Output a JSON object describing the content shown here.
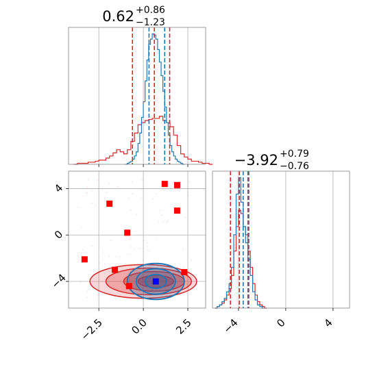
{
  "chart_data": [
    {
      "type": "histogram",
      "panel": "marginal-x",
      "title_value": "0.62",
      "title_plus": "+0.86",
      "title_minus": "−1.23",
      "xlim": [
        -4.2,
        3.5
      ],
      "grid": true,
      "series": [
        {
          "color": "#d62728",
          "bins_start": -3.9,
          "bin_width": 0.2,
          "counts": [
            0,
            1,
            1,
            1,
            2,
            2,
            3,
            4,
            4,
            6,
            8,
            11,
            14,
            12,
            10,
            14,
            22,
            30,
            38,
            40,
            42,
            43,
            44,
            44,
            46,
            42,
            40,
            36,
            28,
            18,
            10,
            7,
            5,
            3,
            3,
            2,
            1,
            1,
            0
          ]
        },
        {
          "color": "#1f77b4",
          "bins_start": -1.0,
          "bin_width": 0.1,
          "counts": [
            0,
            1,
            2,
            3,
            5,
            8,
            12,
            20,
            30,
            45,
            60,
            80,
            100,
            115,
            120,
            125,
            124,
            120,
            110,
            98,
            85,
            70,
            55,
            40,
            28,
            18,
            12,
            8,
            5,
            3,
            2,
            1,
            0
          ]
        }
      ],
      "vlines": [
        {
          "color": "#d62728",
          "values": [
            -0.61,
            0.62,
            1.48
          ]
        },
        {
          "color": "#1f77b4",
          "values": [
            0.32,
            1.2
          ]
        }
      ]
    },
    {
      "type": "histogram",
      "panel": "marginal-y",
      "title_value": "−3.92",
      "title_plus": "+0.79",
      "title_minus": "−0.76",
      "xlim": [
        -6.2,
        5.4
      ],
      "xticks": [
        "−4",
        "0",
        "4"
      ],
      "xtick_values": [
        -4,
        0,
        4
      ],
      "grid": true,
      "series": [
        {
          "color": "#d62728",
          "bins_start": -6.0,
          "bin_width": 0.2,
          "counts": [
            0,
            1,
            2,
            3,
            5,
            8,
            12,
            20,
            35,
            50,
            60,
            58,
            50,
            45,
            35,
            25,
            15,
            8,
            4,
            2,
            1,
            0
          ]
        },
        {
          "color": "#1f77b4",
          "bins_start": -6.0,
          "bin_width": 0.2,
          "counts": [
            0,
            1,
            2,
            4,
            6,
            10,
            15,
            25,
            45,
            70,
            80,
            65,
            50,
            40,
            30,
            20,
            10,
            5,
            2,
            1,
            0
          ]
        }
      ],
      "vlines": [
        {
          "color": "#d62728",
          "values": [
            -4.68,
            -3.92,
            -3.13
          ]
        },
        {
          "color": "#1f77b4",
          "values": [
            -3.6,
            -3.2
          ]
        }
      ]
    },
    {
      "type": "scatter-contour",
      "panel": "joint",
      "xlim": [
        -4.2,
        3.5
      ],
      "ylim": [
        -6.3,
        5.5
      ],
      "xticks": [
        "−2.5",
        "0.0",
        "2.5"
      ],
      "xtick_values": [
        -2.5,
        0,
        2.5
      ],
      "yticks": [
        "−4",
        "0",
        "4"
      ],
      "ytick_values": [
        -4,
        0,
        4
      ],
      "grid": true,
      "red_markers": [
        {
          "x": 1.2,
          "y": 4.4
        },
        {
          "x": 1.9,
          "y": 4.3
        },
        {
          "x": -1.9,
          "y": 2.7
        },
        {
          "x": 1.9,
          "y": 2.1
        },
        {
          "x": -0.9,
          "y": 0.2
        },
        {
          "x": -3.3,
          "y": -2.1
        },
        {
          "x": -1.6,
          "y": -3.0
        },
        {
          "x": 2.3,
          "y": -3.2
        },
        {
          "x": -0.8,
          "y": -4.4
        }
      ],
      "blue_marker": {
        "x": 0.7,
        "y": -4.0
      },
      "red_contours": [
        {
          "cx": 0.0,
          "cy": -4.0,
          "rx": 3.0,
          "ry": 1.45
        },
        {
          "cx": 0.3,
          "cy": -4.0,
          "rx": 2.4,
          "ry": 1.15
        },
        {
          "cx": 0.6,
          "cy": -4.0,
          "rx": 1.7,
          "ry": 0.85
        },
        {
          "cx": 0.7,
          "cy": -4.0,
          "rx": 1.0,
          "ry": 0.5
        }
      ],
      "blue_contours": [
        {
          "cx": 0.7,
          "cy": -4.0,
          "rx": 1.6,
          "ry": 1.55
        },
        {
          "cx": 0.7,
          "cy": -4.0,
          "rx": 1.1,
          "ry": 1.1
        },
        {
          "cx": 0.7,
          "cy": -4.0,
          "rx": 0.6,
          "ry": 0.6
        }
      ]
    }
  ]
}
